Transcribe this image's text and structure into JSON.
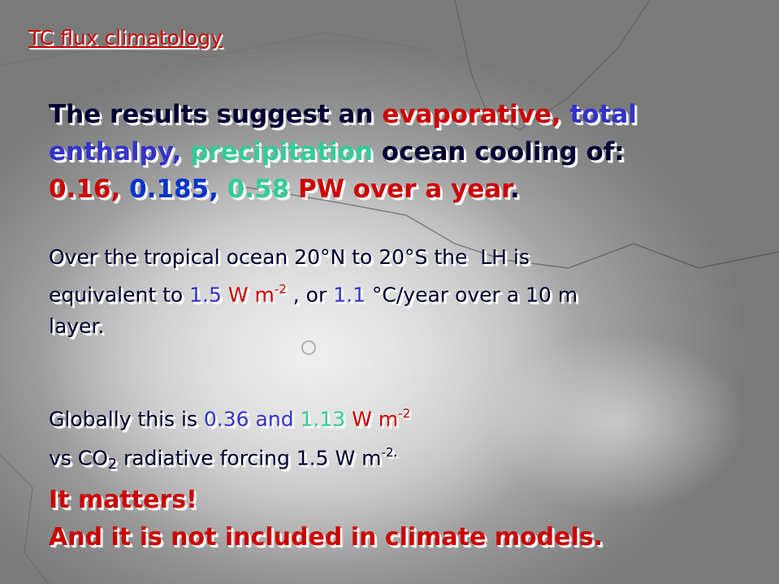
{
  "title": {
    "text": "TC flux climatology",
    "color": "#cc0000"
  },
  "paragraphs": [
    {
      "lines": [
        [
          {
            "text": "The results suggest an ",
            "color": "#000033"
          },
          {
            "text": "evaporative, ",
            "color": "#cc0000"
          },
          {
            "text": "total",
            "color": "#3333cc"
          }
        ],
        [
          {
            "text": "enthalpy, ",
            "color": "#3333cc"
          },
          {
            "text": "precipitation ",
            "color": "#33cc99"
          },
          {
            "text": "ocean cooling of:",
            "color": "#000033"
          }
        ],
        [
          {
            "text": "0.16, ",
            "color": "#cc0000"
          },
          {
            "text": "0.185, ",
            "color": "#0033cc"
          },
          {
            "text": "0.58 ",
            "color": "#33cc99"
          },
          {
            "text": "PW over a year",
            "color": "#cc0000"
          },
          {
            "text": ".",
            "color": "#000033"
          }
        ]
      ]
    },
    {
      "lines": [
        [
          {
            "text": "Over the tropical ocean 20°N to 20°S the  LH is",
            "color": "#000033"
          }
        ],
        [
          {
            "text": "equivalent to ",
            "color": "#000033"
          },
          {
            "text": "1.5 ",
            "color": "#3333cc"
          },
          {
            "text": "W m",
            "color": "#cc0000"
          },
          {
            "text": "-2",
            "color": "#cc0000",
            "pos": "sup"
          },
          {
            "text": " , or ",
            "color": "#000033"
          },
          {
            "text": "1.1",
            "color": "#3333cc"
          },
          {
            "text": " °C/year over a 10 m",
            "color": "#000033"
          }
        ],
        [
          {
            "text": "layer.",
            "color": "#000033"
          }
        ]
      ]
    },
    {
      "lines": [
        [
          {
            "text": "Globally this is ",
            "color": "#000033"
          },
          {
            "text": "0.36 and ",
            "color": "#3333cc"
          },
          {
            "text": "1.13 ",
            "color": "#33cc99"
          },
          {
            "text": "W m",
            "color": "#cc0000"
          },
          {
            "text": "-2",
            "color": "#cc0000",
            "pos": "sup"
          }
        ],
        [
          {
            "text": "vs CO",
            "color": "#000033"
          },
          {
            "text": "2",
            "color": "#000033",
            "pos": "sub"
          },
          {
            "text": " radiative forcing 1.5 W m",
            "color": "#000033"
          },
          {
            "text": "-2.",
            "color": "#000033",
            "pos": "sup"
          }
        ]
      ]
    },
    {
      "lines": [
        [
          {
            "text": "It matters!",
            "color": "#cc0000"
          }
        ],
        [
          {
            "text": "And it is not included in climate models.",
            "color": "#cc0000"
          }
        ]
      ]
    }
  ]
}
